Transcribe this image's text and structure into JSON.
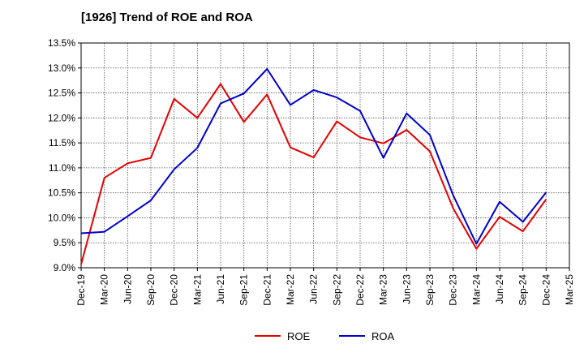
{
  "chart_data": {
    "type": "line",
    "title": "[1926]  Trend of ROE and ROA",
    "xlabel": "",
    "ylabel": "",
    "x": [
      "Dec-19",
      "Mar-20",
      "Jun-20",
      "Sep-20",
      "Dec-20",
      "Mar-21",
      "Jun-21",
      "Sep-21",
      "Dec-21",
      "Mar-22",
      "Jun-22",
      "Sep-22",
      "Dec-22",
      "Mar-23",
      "Jun-23",
      "Sep-23",
      "Dec-23",
      "Mar-24",
      "Jun-24",
      "Sep-24",
      "Dec-24",
      "Mar-25"
    ],
    "ylim": [
      9.0,
      13.5
    ],
    "yticks": [
      "9.0%",
      "9.5%",
      "10.0%",
      "10.5%",
      "11.0%",
      "11.5%",
      "12.0%",
      "12.5%",
      "13.0%",
      "13.5%"
    ],
    "grid": true,
    "legend_position": "bottom",
    "series": [
      {
        "name": "ROE",
        "color": "#e60000",
        "values": [
          9.07,
          10.8,
          11.09,
          11.2,
          12.38,
          12.0,
          12.68,
          11.92,
          12.47,
          11.41,
          11.21,
          11.93,
          11.61,
          11.49,
          11.76,
          11.33,
          10.19,
          9.38,
          10.02,
          9.73,
          10.37,
          null
        ]
      },
      {
        "name": "ROA",
        "color": "#0000cc",
        "values": [
          9.69,
          9.72,
          10.03,
          10.35,
          10.97,
          11.4,
          12.29,
          12.49,
          12.98,
          12.26,
          12.56,
          12.41,
          12.14,
          11.2,
          12.09,
          11.66,
          10.45,
          9.48,
          10.32,
          9.92,
          10.51,
          null
        ]
      }
    ]
  }
}
